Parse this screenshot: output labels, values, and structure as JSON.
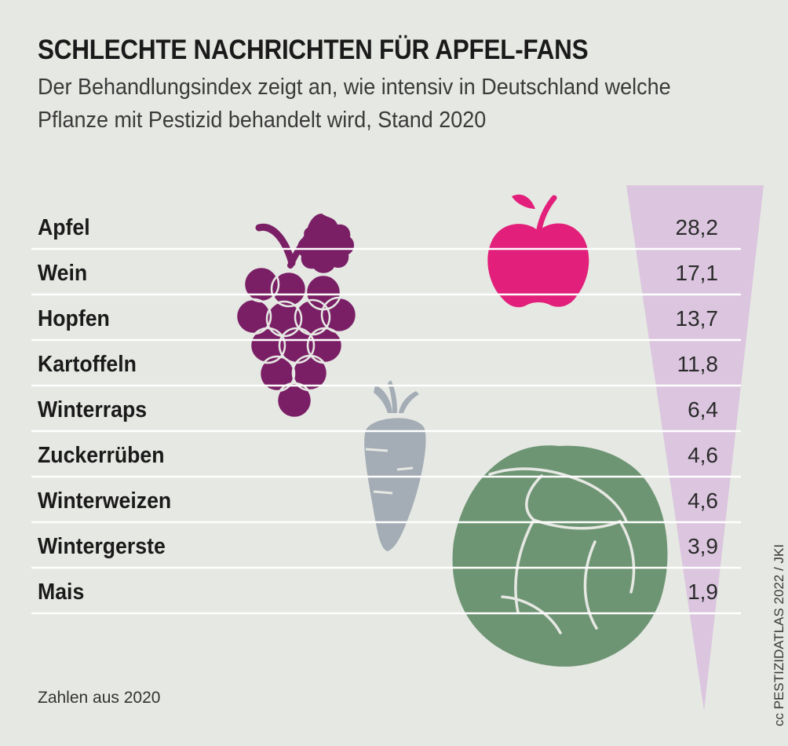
{
  "title": "SCHLECHTE NACHRICHTEN FÜR APFEL-FANS",
  "subtitle": "Der Behandlungsindex zeigt an, wie intensiv in Deutschland welche Pflanze mit Pestizid behandelt wird, Stand 2020",
  "footnote": "Zahlen aus 2020",
  "credit": "cc PESTIZIDATLAS 2022 / JKI",
  "colors": {
    "background": "#e6e8e3",
    "cone": "#dbc5df",
    "grape": "#7a1f66",
    "apple": "#e21f7a",
    "carrot": "#a4adb5",
    "cabbage": "#6e9573",
    "divider": "#ffffff"
  },
  "icons": [
    "grape-icon",
    "apple-icon",
    "carrot-icon",
    "cabbage-icon"
  ],
  "chart_data": {
    "type": "table",
    "categories": [
      "Apfel",
      "Wein",
      "Hopfen",
      "Kartoffeln",
      "Winterraps",
      "Zuckerrüben",
      "Winterweizen",
      "Wintergerste",
      "Mais"
    ],
    "labels": [
      "28,2",
      "17,1",
      "13,7",
      "11,8",
      "6,4",
      "4,6",
      "4,6",
      "3,9",
      "1,9"
    ],
    "values": [
      28.2,
      17.1,
      13.7,
      11.8,
      6.4,
      4.6,
      4.6,
      3.9,
      1.9
    ],
    "title": "SCHLECHTE NACHRICHTEN FÜR APFEL-FANS",
    "xlabel": "",
    "ylabel": ""
  }
}
